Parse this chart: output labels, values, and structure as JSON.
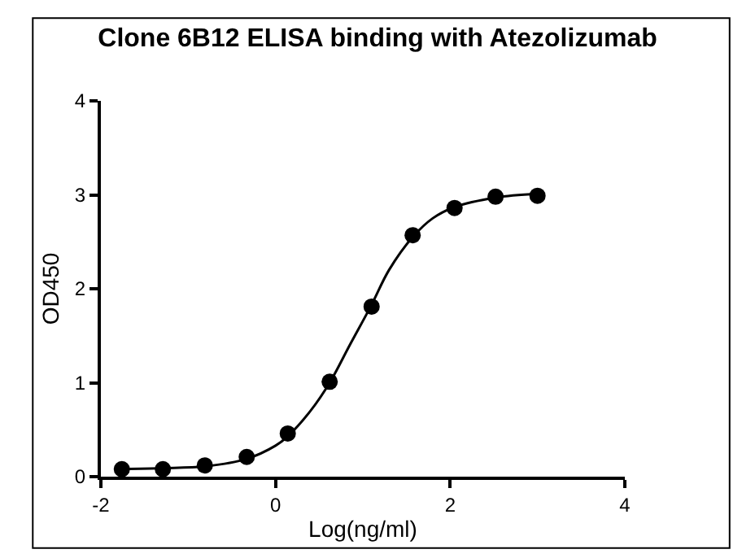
{
  "chart_data": {
    "type": "scatter",
    "title": "Clone 6B12 ELISA binding with Atezolizumab",
    "xlabel": "Log(ng/ml)",
    "ylabel": "OD450",
    "xlim": [
      -2,
      4
    ],
    "xticks": [
      -2,
      0,
      2,
      4
    ],
    "ylim": [
      0,
      4
    ],
    "yticks": [
      0,
      1,
      2,
      3,
      4
    ],
    "grid": false,
    "marker": "circle",
    "series": [
      {
        "color": "#000000",
        "x": [
          -1.76,
          -1.29,
          -0.81,
          -0.33,
          0.14,
          0.62,
          1.1,
          1.57,
          2.05,
          2.52,
          3.0
        ],
        "values": [
          0.08,
          0.08,
          0.12,
          0.21,
          0.46,
          1.01,
          1.81,
          2.57,
          2.86,
          2.98,
          2.99
        ]
      },
      {
        "type": "line",
        "color": "#000000",
        "marker": "none",
        "line_style": "solid",
        "x": [
          -1.76,
          -1.29,
          -0.81,
          -0.33,
          0.0,
          0.14,
          0.4,
          0.62,
          0.85,
          1.1,
          1.3,
          1.57,
          1.8,
          2.05,
          2.52,
          3.0
        ],
        "values": [
          0.08,
          0.09,
          0.11,
          0.19,
          0.33,
          0.43,
          0.7,
          1.0,
          1.4,
          1.83,
          2.2,
          2.55,
          2.75,
          2.87,
          2.97,
          3.01
        ]
      }
    ]
  }
}
